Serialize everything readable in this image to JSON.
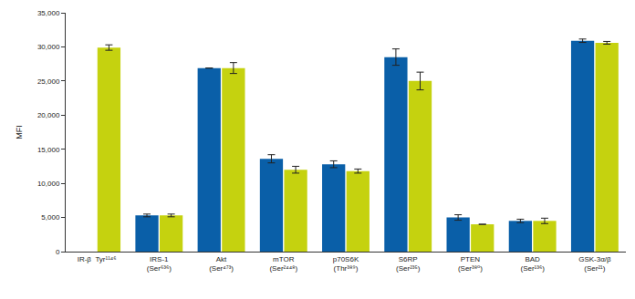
{
  "chart_data": {
    "type": "bar",
    "y_label": "MFI",
    "categories": [
      "IR-β  Tyr¹¹⁴⁶",
      "IRS-1\n(Ser⁶³⁶)",
      "Akt\n(Ser⁴⁷³)",
      "mTOR\n(Ser²⁴⁴⁸)",
      "p70S6K\n(Thr³⁸⁹)",
      "S6RP\n(Ser²³⁵)",
      "PTEN\n(Ser³⁸⁰)",
      "BAD\n(Ser¹³⁶)",
      "GSK-3α/β\n(Ser²¹)"
    ],
    "series": [
      {
        "color": "#0a5fa8",
        "values": [
          null,
          5300,
          26900,
          13600,
          12800,
          28500,
          5000,
          4500,
          30900
        ],
        "errors": [
          null,
          200,
          0,
          600,
          500,
          1200,
          400,
          250,
          250
        ]
      },
      {
        "color": "#c5d20f",
        "values": [
          29900,
          5300,
          26900,
          12000,
          11800,
          25000,
          4000,
          4500,
          30600
        ],
        "errors": [
          400,
          200,
          800,
          500,
          300,
          1300,
          0,
          400,
          200
        ]
      }
    ],
    "ylim": [
      0,
      35000
    ],
    "yticks": [
      0,
      {
        "value": 5000,
        "label": "5,000"
      },
      {
        "value": 10000,
        "label": "10,000"
      },
      {
        "value": 15000,
        "label": "15,000"
      },
      {
        "value": 20000,
        "label": "20,000"
      },
      {
        "value": 25000,
        "label": "25,000"
      },
      {
        "value": 30000,
        "label": "30,000"
      },
      {
        "value": 35000,
        "label": "35,000"
      }
    ],
    "grid": false
  }
}
